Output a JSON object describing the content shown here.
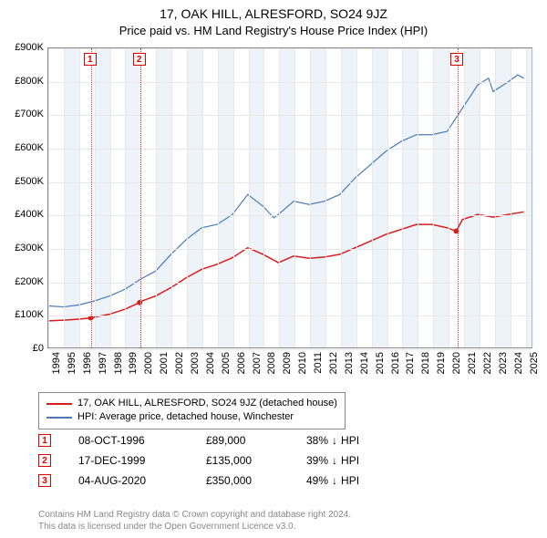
{
  "title": "17, OAK HILL, ALRESFORD, SO24 9JZ",
  "subtitle": "Price paid vs. HM Land Registry's House Price Index (HPI)",
  "chart": {
    "type": "line",
    "background_color": "#ffffff",
    "grid_color": "#e8e8e8",
    "band_shade_color": "#e0eaf5",
    "x_min": 1994,
    "x_max": 2025.5,
    "y_min": 0,
    "y_max": 900000,
    "y_ticks": [
      0,
      100000,
      200000,
      300000,
      400000,
      500000,
      600000,
      700000,
      800000,
      900000
    ],
    "y_tick_labels": [
      "£0",
      "£100K",
      "£200K",
      "£300K",
      "£400K",
      "£500K",
      "£600K",
      "£700K",
      "£800K",
      "£900K"
    ],
    "x_ticks": [
      1994,
      1995,
      1996,
      1997,
      1998,
      1999,
      2000,
      2001,
      2002,
      2003,
      2004,
      2005,
      2006,
      2007,
      2008,
      2009,
      2010,
      2011,
      2012,
      2013,
      2014,
      2015,
      2016,
      2017,
      2018,
      2019,
      2020,
      2021,
      2022,
      2023,
      2024,
      2025
    ],
    "series": [
      {
        "name": "property",
        "label": "17, OAK HILL, ALRESFORD, SO24 9JZ (detached house)",
        "color": "#d91c1c",
        "line_width": 1.5,
        "data": [
          [
            1994,
            80000
          ],
          [
            1995,
            82000
          ],
          [
            1996,
            85000
          ],
          [
            1996.77,
            89000
          ],
          [
            1997,
            91000
          ],
          [
            1998,
            100000
          ],
          [
            1999,
            115000
          ],
          [
            1999.96,
            135000
          ],
          [
            2000,
            138000
          ],
          [
            2001,
            155000
          ],
          [
            2002,
            180000
          ],
          [
            2003,
            210000
          ],
          [
            2004,
            235000
          ],
          [
            2005,
            250000
          ],
          [
            2006,
            270000
          ],
          [
            2007,
            300000
          ],
          [
            2008,
            280000
          ],
          [
            2009,
            255000
          ],
          [
            2010,
            275000
          ],
          [
            2011,
            268000
          ],
          [
            2012,
            272000
          ],
          [
            2013,
            280000
          ],
          [
            2014,
            300000
          ],
          [
            2015,
            320000
          ],
          [
            2016,
            340000
          ],
          [
            2017,
            355000
          ],
          [
            2018,
            370000
          ],
          [
            2019,
            370000
          ],
          [
            2020,
            360000
          ],
          [
            2020.59,
            350000
          ],
          [
            2021,
            385000
          ],
          [
            2022,
            400000
          ],
          [
            2023,
            392000
          ],
          [
            2024,
            400000
          ],
          [
            2025,
            408000
          ]
        ]
      },
      {
        "name": "hpi",
        "label": "HPI: Average price, detached house, Winchester",
        "color": "#4a7ab8",
        "line_width": 1.2,
        "data": [
          [
            1994,
            125000
          ],
          [
            1995,
            122000
          ],
          [
            1996,
            128000
          ],
          [
            1997,
            140000
          ],
          [
            1998,
            155000
          ],
          [
            1999,
            175000
          ],
          [
            2000,
            205000
          ],
          [
            2001,
            230000
          ],
          [
            2002,
            280000
          ],
          [
            2003,
            325000
          ],
          [
            2004,
            360000
          ],
          [
            2005,
            370000
          ],
          [
            2006,
            400000
          ],
          [
            2007,
            460000
          ],
          [
            2008,
            425000
          ],
          [
            2008.7,
            390000
          ],
          [
            2009,
            400000
          ],
          [
            2010,
            440000
          ],
          [
            2011,
            430000
          ],
          [
            2012,
            440000
          ],
          [
            2013,
            460000
          ],
          [
            2014,
            510000
          ],
          [
            2015,
            550000
          ],
          [
            2016,
            590000
          ],
          [
            2017,
            620000
          ],
          [
            2018,
            640000
          ],
          [
            2019,
            640000
          ],
          [
            2020,
            650000
          ],
          [
            2021,
            720000
          ],
          [
            2022,
            790000
          ],
          [
            2022.7,
            810000
          ],
          [
            2023,
            770000
          ],
          [
            2024,
            800000
          ],
          [
            2024.6,
            820000
          ],
          [
            2025,
            810000
          ]
        ]
      }
    ],
    "markers": [
      {
        "id": 1,
        "x": 1996.77,
        "y": 89000
      },
      {
        "id": 2,
        "x": 1999.96,
        "y": 135000
      },
      {
        "id": 3,
        "x": 2020.59,
        "y": 350000
      }
    ],
    "marker_line_color": "#d04040",
    "marker_box_border": "#e00000"
  },
  "legend": [
    {
      "color": "#d91c1c",
      "text": "17, OAK HILL, ALRESFORD, SO24 9JZ (detached house)"
    },
    {
      "color": "#4a7ab8",
      "text": "HPI: Average price, detached house, Winchester"
    }
  ],
  "annotations": [
    {
      "id": 1,
      "date": "08-OCT-1996",
      "price": "£89,000",
      "pct": "38%",
      "direction": "↓",
      "suffix": "HPI"
    },
    {
      "id": 2,
      "date": "17-DEC-1999",
      "price": "£135,000",
      "pct": "39%",
      "direction": "↓",
      "suffix": "HPI"
    },
    {
      "id": 3,
      "date": "04-AUG-2020",
      "price": "£350,000",
      "pct": "49%",
      "direction": "↓",
      "suffix": "HPI"
    }
  ],
  "footer_line1": "Contains HM Land Registry data © Crown copyright and database right 2024.",
  "footer_line2": "This data is licensed under the Open Government Licence v3.0."
}
